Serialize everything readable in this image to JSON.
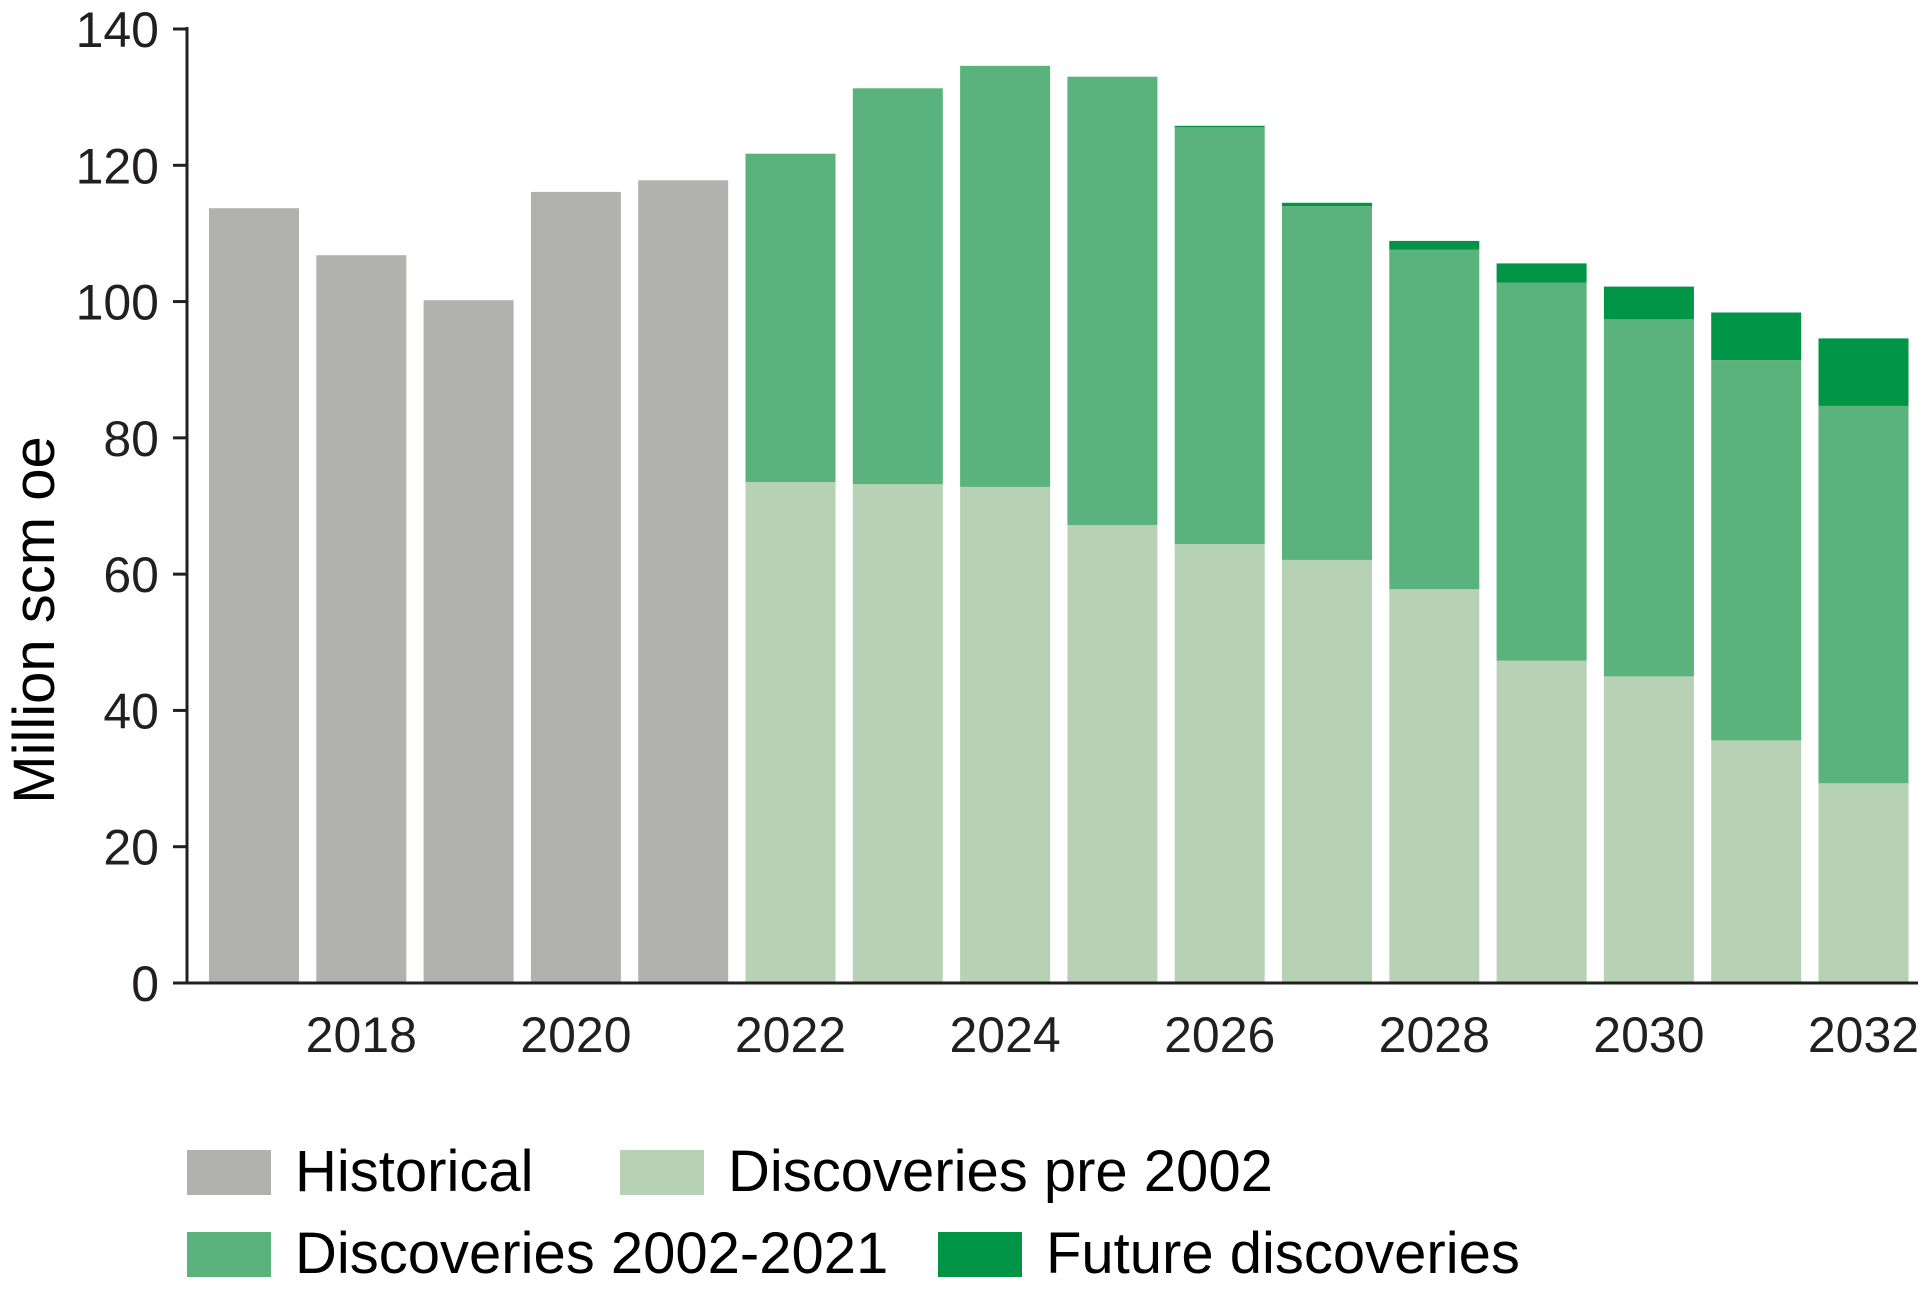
{
  "chart_data": {
    "type": "bar",
    "stacked": true,
    "ylabel": "Million scm oe",
    "xlabel": "",
    "ylim": [
      0,
      140
    ],
    "yticks": [
      0,
      20,
      40,
      60,
      80,
      100,
      120,
      140
    ],
    "categories": [
      "2017",
      "2018",
      "2019",
      "2020",
      "2021",
      "2022",
      "2023",
      "2024",
      "2025",
      "2026",
      "2027",
      "2028",
      "2029",
      "2030",
      "2031",
      "2032"
    ],
    "xtick_labels": [
      "2018",
      "2020",
      "2022",
      "2024",
      "2026",
      "2028",
      "2030",
      "2032"
    ],
    "series": [
      {
        "name": "Historical",
        "color": "#b1b1b0",
        "values": [
          113.7,
          106.8,
          100.2,
          116.1,
          117.8,
          0,
          0,
          0,
          0,
          0,
          0,
          0,
          0,
          0,
          0,
          0
        ]
      },
      {
        "name": "Discoveries pre 2002",
        "color": "#b6d1b3",
        "values": [
          0,
          0,
          0,
          0,
          0,
          73.5,
          73.2,
          72.8,
          67.2,
          64.4,
          62.1,
          57.8,
          47.3,
          45.0,
          35.6,
          29.3
        ]
      },
      {
        "name": "Discoveries 2002-2021",
        "color": "#5ab27c",
        "values": [
          0,
          0,
          0,
          0,
          0,
          48.2,
          58.1,
          61.8,
          65.8,
          61.2,
          51.9,
          49.8,
          55.5,
          52.4,
          55.8,
          55.4
        ]
      },
      {
        "name": "Future discoveries",
        "color": "#009447",
        "values": [
          0,
          0,
          0,
          0,
          0,
          0,
          0,
          0,
          0,
          0.2,
          0.5,
          1.3,
          2.8,
          4.8,
          7.0,
          9.9
        ]
      }
    ],
    "legend": {
      "position": "bottom",
      "items": [
        "Historical",
        "Discoveries pre 2002",
        "Discoveries 2002-2021",
        "Future discoveries"
      ]
    }
  }
}
